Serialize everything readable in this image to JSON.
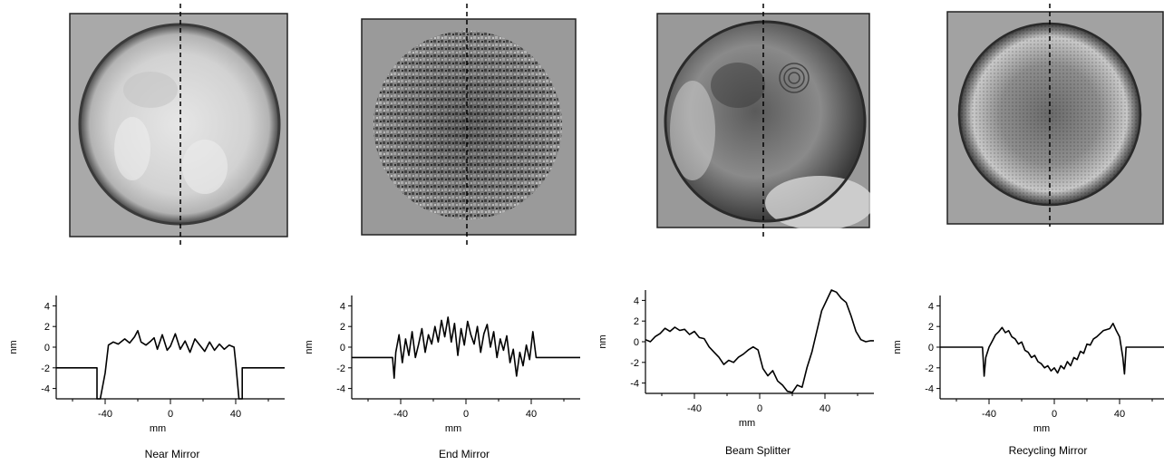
{
  "panels": [
    {
      "caption": "Near Mirror",
      "image_style": "smooth-light",
      "chart_data": {
        "type": "line",
        "xlabel": "mm",
        "ylabel": "nm",
        "xlim": [
          -70,
          70
        ],
        "ylim": [
          -5,
          5
        ],
        "x_ticks": [
          -40,
          0,
          40
        ],
        "y_ticks": [
          4,
          2,
          0,
          -2,
          -4
        ],
        "x_tick_labels": [
          "-40",
          "0",
          "40"
        ],
        "y_tick_labels": [
          "4",
          "2",
          "0",
          "-2",
          "-4"
        ],
        "series": [
          {
            "x": [
              -70,
              -45,
              -45,
              -43,
              -40,
              -38,
              -35,
              -32,
              -28,
              -25,
              -22,
              -20,
              -18,
              -15,
              -12,
              -10,
              -8,
              -5,
              -2,
              0,
              3,
              6,
              9,
              12,
              15,
              18,
              21,
              24,
              27,
              30,
              33,
              36,
              39,
              40,
              42,
              44,
              44,
              70
            ],
            "y": [
              -2,
              -2,
              -5,
              -5,
              -2.5,
              0.2,
              0.5,
              0.3,
              0.8,
              0.4,
              1.0,
              1.6,
              0.5,
              0.2,
              0.6,
              0.9,
              -0.2,
              1.2,
              -0.3,
              0.1,
              1.3,
              -0.2,
              0.6,
              -0.5,
              0.8,
              0.2,
              -0.4,
              0.5,
              -0.3,
              0.3,
              -0.2,
              0.2,
              0.0,
              -1.5,
              -5,
              -5,
              -2,
              -2
            ]
          }
        ]
      }
    },
    {
      "caption": "End Mirror",
      "image_style": "speckle",
      "chart_data": {
        "type": "line",
        "xlabel": "mm",
        "ylabel": "nm",
        "xlim": [
          -70,
          70
        ],
        "ylim": [
          -5,
          5
        ],
        "x_ticks": [
          -40,
          0,
          40
        ],
        "y_ticks": [
          4,
          2,
          0,
          -2,
          -4
        ],
        "x_tick_labels": [
          "-40",
          "0",
          "40"
        ],
        "y_tick_labels": [
          "4",
          "2",
          "0",
          "-2",
          "-4"
        ],
        "series": [
          {
            "x": [
              -70,
              -45,
              -44,
              -43,
              -41,
              -39,
              -37,
              -35,
              -33,
              -31,
              -29,
              -27,
              -25,
              -23,
              -21,
              -19,
              -17,
              -15,
              -13,
              -11,
              -9,
              -7,
              -5,
              -3,
              -1,
              1,
              3,
              5,
              7,
              9,
              11,
              13,
              15,
              17,
              19,
              21,
              23,
              25,
              27,
              29,
              31,
              33,
              35,
              37,
              39,
              41,
              43,
              45,
              70
            ],
            "y": [
              -1,
              -1,
              -3,
              -0.5,
              1.2,
              -1.5,
              0.8,
              -0.8,
              1.5,
              -1.0,
              0.3,
              1.8,
              -0.5,
              1.2,
              0.3,
              2.0,
              0.5,
              2.6,
              1.0,
              2.9,
              0.5,
              2.3,
              -0.8,
              1.8,
              0.2,
              2.5,
              1.2,
              0.3,
              2.0,
              -0.5,
              1.3,
              2.2,
              0.0,
              1.5,
              -1.0,
              0.8,
              -0.3,
              1.1,
              -1.5,
              -0.2,
              -2.8,
              -0.5,
              -1.8,
              0.2,
              -1.2,
              1.5,
              -1.0,
              -1,
              -1
            ]
          }
        ]
      }
    },
    {
      "caption": "Beam Splitter",
      "image_style": "mottled",
      "chart_data": {
        "type": "line",
        "xlabel": "mm",
        "ylabel": "nm",
        "xlim": [
          -70,
          70
        ],
        "ylim": [
          -5,
          5
        ],
        "x_ticks": [
          -40,
          0,
          40
        ],
        "y_ticks": [
          4,
          2,
          0,
          -2,
          -4
        ],
        "x_tick_labels": [
          "-40",
          "0",
          "40"
        ],
        "y_tick_labels": [
          "4",
          "2",
          "0",
          "-2",
          "-4"
        ],
        "series": [
          {
            "x": [
              -70,
              -67,
              -64,
              -61,
              -58,
              -55,
              -52,
              -49,
              -46,
              -43,
              -40,
              -37,
              -34,
              -31,
              -28,
              -25,
              -22,
              -19,
              -16,
              -13,
              -10,
              -7,
              -4,
              -1,
              2,
              5,
              8,
              11,
              14,
              17,
              20,
              23,
              26,
              29,
              32,
              35,
              38,
              41,
              44,
              47,
              50,
              53,
              56,
              59,
              62,
              65,
              68,
              70
            ],
            "y": [
              0.2,
              0.0,
              0.5,
              0.8,
              1.3,
              1.0,
              1.4,
              1.1,
              1.2,
              0.7,
              1.0,
              0.4,
              0.3,
              -0.5,
              -1.0,
              -1.5,
              -2.2,
              -1.8,
              -2.0,
              -1.5,
              -1.2,
              -0.8,
              -0.5,
              -0.8,
              -2.6,
              -3.3,
              -2.8,
              -3.8,
              -4.2,
              -4.8,
              -4.9,
              -4.2,
              -4.4,
              -2.5,
              -1.0,
              1.0,
              3.0,
              4.0,
              5.0,
              4.8,
              4.2,
              3.8,
              2.5,
              1.0,
              0.2,
              0.0,
              0.1,
              0.1
            ]
          }
        ]
      }
    },
    {
      "caption": "Recycling Mirror",
      "image_style": "dark-center",
      "chart_data": {
        "type": "line",
        "xlabel": "mm",
        "ylabel": "nm",
        "xlim": [
          -70,
          70
        ],
        "ylim": [
          -5,
          5
        ],
        "x_ticks": [
          -40,
          0,
          40
        ],
        "y_ticks": [
          4,
          2,
          0,
          -2,
          -4
        ],
        "x_tick_labels": [
          "-40",
          "0",
          "40"
        ],
        "y_tick_labels": [
          "4",
          "2",
          "0",
          "-2",
          "-4"
        ],
        "series": [
          {
            "x": [
              -70,
              -44,
              -43,
              -42,
              -40,
              -38,
              -36,
              -34,
              -32,
              -30,
              -28,
              -26,
              -24,
              -22,
              -20,
              -18,
              -16,
              -14,
              -12,
              -10,
              -8,
              -6,
              -4,
              -2,
              0,
              2,
              4,
              6,
              8,
              10,
              12,
              14,
              16,
              18,
              20,
              22,
              24,
              26,
              28,
              30,
              32,
              34,
              36,
              38,
              40,
              42,
              43,
              44,
              70
            ],
            "y": [
              0,
              0,
              -2.8,
              -1.0,
              0.0,
              0.6,
              1.2,
              1.5,
              1.9,
              1.4,
              1.6,
              1.0,
              0.8,
              0.3,
              0.5,
              -0.3,
              -0.5,
              -1.0,
              -0.8,
              -1.4,
              -1.6,
              -2.0,
              -1.8,
              -2.3,
              -2.0,
              -2.5,
              -1.8,
              -2.1,
              -1.4,
              -1.8,
              -1.0,
              -1.2,
              -0.4,
              -0.6,
              0.3,
              0.2,
              0.8,
              1.0,
              1.3,
              1.6,
              1.7,
              1.8,
              2.3,
              1.6,
              1.0,
              -1.0,
              -2.6,
              0,
              0
            ]
          }
        ]
      }
    }
  ]
}
